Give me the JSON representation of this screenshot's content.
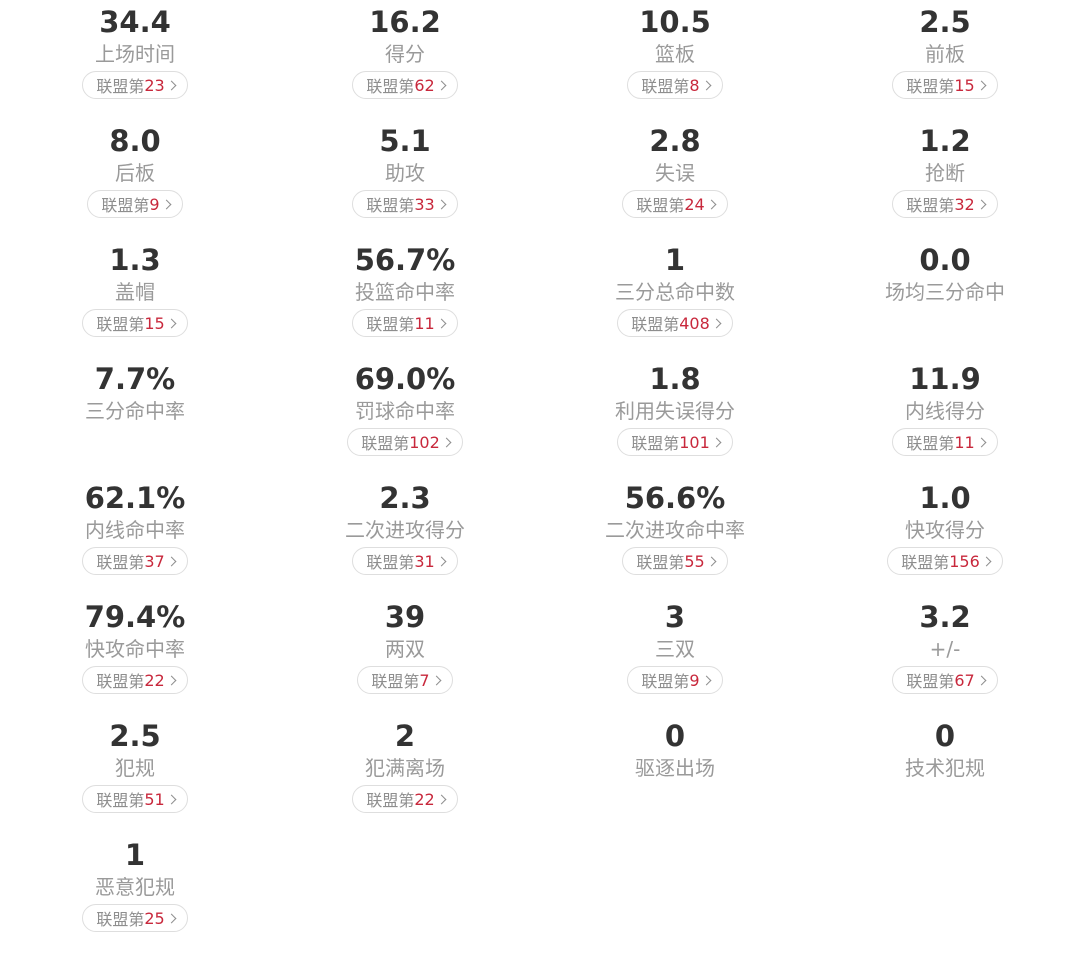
{
  "stats": [
    {
      "value": "34.4",
      "label": "上场时间",
      "rank_prefix": "联盟第",
      "rank": "23"
    },
    {
      "value": "16.2",
      "label": "得分",
      "rank_prefix": "联盟第",
      "rank": "62"
    },
    {
      "value": "10.5",
      "label": "篮板",
      "rank_prefix": "联盟第",
      "rank": "8"
    },
    {
      "value": "2.5",
      "label": "前板",
      "rank_prefix": "联盟第",
      "rank": "15"
    },
    {
      "value": "8.0",
      "label": "后板",
      "rank_prefix": "联盟第",
      "rank": "9"
    },
    {
      "value": "5.1",
      "label": "助攻",
      "rank_prefix": "联盟第",
      "rank": "33"
    },
    {
      "value": "2.8",
      "label": "失误",
      "rank_prefix": "联盟第",
      "rank": "24"
    },
    {
      "value": "1.2",
      "label": "抢断",
      "rank_prefix": "联盟第",
      "rank": "32"
    },
    {
      "value": "1.3",
      "label": "盖帽",
      "rank_prefix": "联盟第",
      "rank": "15"
    },
    {
      "value": "56.7%",
      "label": "投篮命中率",
      "rank_prefix": "联盟第",
      "rank": "11"
    },
    {
      "value": "1",
      "label": "三分总命中数",
      "rank_prefix": "联盟第",
      "rank": "408"
    },
    {
      "value": "0.0",
      "label": "场均三分命中"
    },
    {
      "value": "7.7%",
      "label": "三分命中率"
    },
    {
      "value": "69.0%",
      "label": "罚球命中率",
      "rank_prefix": "联盟第",
      "rank": "102"
    },
    {
      "value": "1.8",
      "label": "利用失误得分",
      "rank_prefix": "联盟第",
      "rank": "101"
    },
    {
      "value": "11.9",
      "label": "内线得分",
      "rank_prefix": "联盟第",
      "rank": "11"
    },
    {
      "value": "62.1%",
      "label": "内线命中率",
      "rank_prefix": "联盟第",
      "rank": "37"
    },
    {
      "value": "2.3",
      "label": "二次进攻得分",
      "rank_prefix": "联盟第",
      "rank": "31"
    },
    {
      "value": "56.6%",
      "label": "二次进攻命中率",
      "rank_prefix": "联盟第",
      "rank": "55"
    },
    {
      "value": "1.0",
      "label": "快攻得分",
      "rank_prefix": "联盟第",
      "rank": "156"
    },
    {
      "value": "79.4%",
      "label": "快攻命中率",
      "rank_prefix": "联盟第",
      "rank": "22"
    },
    {
      "value": "39",
      "label": "两双",
      "rank_prefix": "联盟第",
      "rank": "7"
    },
    {
      "value": "3",
      "label": "三双",
      "rank_prefix": "联盟第",
      "rank": "9"
    },
    {
      "value": "3.2",
      "label": "+/-",
      "rank_prefix": "联盟第",
      "rank": "67"
    },
    {
      "value": "2.5",
      "label": "犯规",
      "rank_prefix": "联盟第",
      "rank": "51"
    },
    {
      "value": "2",
      "label": "犯满离场",
      "rank_prefix": "联盟第",
      "rank": "22"
    },
    {
      "value": "0",
      "label": "驱逐出场"
    },
    {
      "value": "0",
      "label": "技术犯规"
    },
    {
      "value": "1",
      "label": "恶意犯规",
      "rank_prefix": "联盟第",
      "rank": "25"
    }
  ],
  "icons": {
    "rank_chevron": "chevron-right-icon"
  },
  "colors": {
    "value": "#333333",
    "label": "#9a9a9a",
    "rank_text": "#8e8e8e",
    "rank_number": "#c8283c",
    "pill_border": "#dedede"
  }
}
